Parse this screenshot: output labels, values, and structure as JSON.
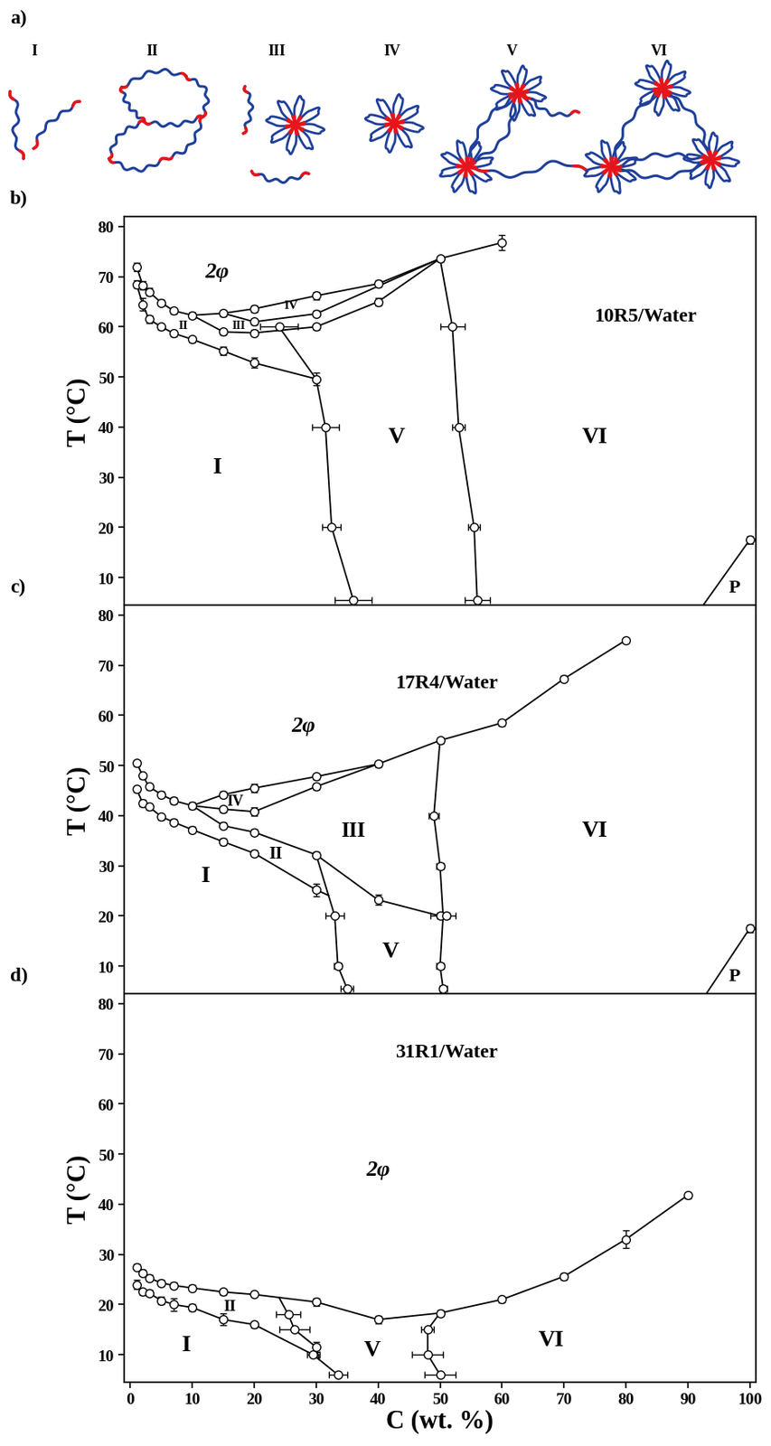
{
  "schematic": {
    "label": "a)",
    "structures": [
      "I",
      "II",
      "III",
      "IV",
      "V",
      "VI"
    ]
  },
  "chart_data": [
    {
      "type": "line",
      "panel": "b)",
      "title": "10R5/Water",
      "y_label": "T (°C)",
      "xlim": [
        -1,
        101
      ],
      "xticks": [
        0,
        10,
        20,
        30,
        40,
        50,
        60,
        70,
        80,
        90,
        100
      ],
      "ylim": [
        4.5,
        82
      ],
      "yticks": [
        10,
        20,
        30,
        40,
        50,
        60,
        70,
        80
      ],
      "tick_labels": "y",
      "series": [
        {
          "type": "line",
          "color": "#000000",
          "marker": "none",
          "x": [
            1,
            2,
            3,
            5,
            7,
            10,
            15,
            20,
            30,
            40,
            50,
            60
          ],
          "y": [
            72,
            68.3,
            67,
            64.8,
            63.2,
            62.3,
            62.7,
            63.6,
            66.2,
            68.6,
            73.6,
            76.8
          ]
        },
        {
          "type": "line",
          "color": "#000000",
          "marker": "none",
          "x": [
            1,
            2,
            3,
            5,
            7,
            10,
            15,
            20,
            30
          ],
          "y": [
            68.5,
            64.5,
            61.5,
            60,
            58.7,
            57.5,
            55.2,
            52.8,
            49.6
          ]
        },
        {
          "type": "line",
          "color": "#000000",
          "marker": "none",
          "x": [
            10,
            15,
            20,
            30,
            40,
            50
          ],
          "y": [
            62.3,
            59,
            58.8,
            60,
            65,
            73.6
          ]
        },
        {
          "type": "line",
          "color": "#000000",
          "marker": "none",
          "x": [
            15,
            20,
            30,
            50
          ],
          "y": [
            62.7,
            61,
            62.6,
            73.6
          ]
        },
        {
          "type": "line",
          "color": "#000000",
          "marker": "none",
          "x": [
            24,
            30,
            31.5,
            32.5,
            36
          ],
          "y": [
            60,
            49.6,
            40,
            20,
            5.5
          ]
        },
        {
          "type": "line",
          "color": "#000000",
          "marker": "none",
          "x": [
            50,
            52,
            53,
            55.5,
            56
          ],
          "y": [
            73.6,
            60,
            40,
            20,
            5.5
          ]
        },
        {
          "type": "line",
          "color": "#000000",
          "marker": "none",
          "x": [
            92.5,
            100
          ],
          "y": [
            4.5,
            17.5
          ]
        },
        {
          "type": "scatter",
          "color": "#000000",
          "marker": "o",
          "x": [
            1,
            1,
            2,
            2,
            3,
            3,
            5,
            5,
            7,
            7,
            10,
            10,
            15,
            15,
            15,
            20,
            20,
            20,
            20,
            24,
            30,
            30,
            30,
            30,
            31.5,
            32.5,
            36,
            40,
            40,
            50,
            52,
            53,
            55.5,
            56,
            60,
            100
          ],
          "y": [
            72,
            68.5,
            68.3,
            64.5,
            67,
            61.5,
            64.8,
            60,
            63.2,
            58.7,
            62.3,
            57.5,
            62.7,
            59,
            55.2,
            63.6,
            61,
            58.8,
            52.8,
            60,
            66.2,
            62.6,
            60,
            49.6,
            40,
            20,
            5.5,
            68.6,
            65,
            73.6,
            60,
            40,
            20,
            5.5,
            76.8,
            17.5
          ],
          "xerr": [
            0,
            0,
            0,
            0,
            0,
            0,
            0,
            0,
            0,
            0,
            0,
            0,
            0,
            0,
            0,
            0,
            0,
            0,
            0,
            3,
            0,
            0,
            0,
            0,
            2.2,
            1.5,
            3,
            0,
            0,
            0,
            2,
            1,
            1,
            2,
            0,
            0
          ],
          "yerr": [
            0.8,
            0.8,
            0.8,
            1.2,
            0.8,
            0.8,
            0.6,
            0.6,
            0.6,
            0.6,
            0.6,
            0.6,
            0.6,
            0.6,
            0.8,
            0.6,
            0.6,
            0.6,
            1,
            0,
            0.8,
            0.6,
            0.6,
            1.2,
            0,
            0,
            0,
            0.6,
            0.8,
            0.6,
            0,
            0,
            0,
            0,
            1.5,
            0.8
          ]
        }
      ],
      "annotations": [
        {
          "text": "2φ",
          "x": 14,
          "y": 71
        },
        {
          "text": "I",
          "x": 14,
          "y": 32
        },
        {
          "text": "II",
          "x": 8.5,
          "y": 60.4
        },
        {
          "text": "III",
          "x": 17.5,
          "y": 60.4
        },
        {
          "text": "IV",
          "x": 26,
          "y": 64.3
        },
        {
          "text": "V",
          "x": 43,
          "y": 38
        },
        {
          "text": "VI",
          "x": 75,
          "y": 38
        },
        {
          "text": "P",
          "x": 97.5,
          "y": 8
        }
      ]
    },
    {
      "type": "line",
      "panel": "c)",
      "title": "17R4/Water",
      "y_label": "T (°C)",
      "xlim": [
        -1,
        101
      ],
      "xticks": [
        0,
        10,
        20,
        30,
        40,
        50,
        60,
        70,
        80,
        90,
        100
      ],
      "ylim": [
        4.5,
        82
      ],
      "yticks": [
        10,
        20,
        30,
        40,
        50,
        60,
        70,
        80
      ],
      "tick_labels": "y",
      "series": [
        {
          "type": "line",
          "color": "#000000",
          "marker": "none",
          "x": [
            1,
            2,
            3,
            5,
            7,
            10,
            15,
            20,
            30,
            40,
            50,
            60,
            70,
            80
          ],
          "y": [
            50.5,
            48,
            45.8,
            44.2,
            43,
            42,
            44.2,
            45.5,
            47.8,
            50.3,
            55,
            58.5,
            67.3,
            75
          ]
        },
        {
          "type": "line",
          "color": "#000000",
          "marker": "none",
          "x": [
            1,
            2,
            3,
            5,
            7,
            10,
            15,
            20,
            30,
            32
          ],
          "y": [
            45.3,
            42.5,
            41.8,
            39.8,
            38.7,
            37.2,
            34.8,
            32.5,
            25.2,
            24.1
          ]
        },
        {
          "type": "line",
          "color": "#000000",
          "marker": "none",
          "x": [
            10,
            15,
            20,
            30,
            40
          ],
          "y": [
            42,
            41.3,
            40.8,
            45.8,
            50.3
          ]
        },
        {
          "type": "line",
          "color": "#000000",
          "marker": "none",
          "x": [
            10,
            15,
            20,
            30,
            40,
            50,
            51
          ],
          "y": [
            42,
            38,
            36.7,
            32.2,
            23.2,
            20,
            20
          ]
        },
        {
          "type": "line",
          "color": "#000000",
          "marker": "none",
          "x": [
            30,
            33,
            33.5,
            35
          ],
          "y": [
            32.2,
            20,
            10,
            5.5
          ]
        },
        {
          "type": "line",
          "color": "#000000",
          "marker": "none",
          "x": [
            50,
            49,
            50,
            50.5,
            50,
            50.5
          ],
          "y": [
            55,
            40,
            30,
            20,
            10,
            5.5
          ]
        },
        {
          "type": "line",
          "color": "#000000",
          "marker": "none",
          "x": [
            93,
            100
          ],
          "y": [
            4.5,
            17.5
          ]
        },
        {
          "type": "scatter",
          "color": "#000000",
          "marker": "o",
          "x": [
            1,
            2,
            3,
            5,
            7,
            10,
            15,
            20,
            30,
            40,
            50,
            60,
            70,
            80,
            1,
            2,
            3,
            5,
            7,
            10,
            15,
            20,
            30,
            15,
            20,
            30,
            15,
            20,
            30,
            40,
            50,
            51,
            33,
            33.5,
            35,
            49,
            50,
            50,
            50.5,
            100
          ],
          "y": [
            50.5,
            48,
            45.8,
            44.2,
            43,
            42,
            44.2,
            45.5,
            47.8,
            50.3,
            55,
            58.5,
            67.3,
            75,
            45.3,
            42.5,
            41.8,
            39.8,
            38.7,
            37.2,
            34.8,
            32.5,
            25.2,
            41.3,
            40.8,
            45.8,
            38,
            36.7,
            32.2,
            23.2,
            20,
            20,
            20,
            10,
            5.5,
            40,
            30,
            10,
            5.5,
            17.5
          ],
          "xerr": [
            0,
            0,
            0,
            0,
            0,
            0,
            0,
            0,
            0,
            0,
            0,
            0,
            0,
            0,
            0,
            0,
            0,
            0,
            0,
            0,
            0,
            0,
            0,
            0,
            0,
            0,
            0,
            0,
            0,
            0,
            1.5,
            1.5,
            1.5,
            0.6,
            1,
            0.8,
            0.6,
            0.6,
            0.6,
            0
          ],
          "yerr": [
            0.6,
            0.6,
            0.6,
            0.6,
            0.6,
            0.6,
            0.6,
            0.8,
            0.6,
            0.6,
            0.6,
            0.6,
            0.6,
            0,
            0.6,
            0.6,
            0.6,
            0.6,
            0.6,
            0.6,
            0.6,
            0.6,
            1.2,
            0.6,
            0.8,
            0.6,
            0.6,
            0.6,
            0.6,
            1,
            0,
            0,
            0,
            0,
            0,
            0,
            0,
            0,
            0,
            0.8
          ]
        }
      ],
      "annotations": [
        {
          "text": "2φ",
          "x": 28,
          "y": 58
        },
        {
          "text": "I",
          "x": 12,
          "y": 28
        },
        {
          "text": "II",
          "x": 23.5,
          "y": 32.5
        },
        {
          "text": "III",
          "x": 36,
          "y": 37
        },
        {
          "text": "IV",
          "x": 17,
          "y": 42.9
        },
        {
          "text": "V",
          "x": 42,
          "y": 13
        },
        {
          "text": "VI",
          "x": 75,
          "y": 37
        },
        {
          "text": "P",
          "x": 97.5,
          "y": 8
        }
      ]
    },
    {
      "type": "line",
      "panel": "d)",
      "title": "31R1/Water",
      "y_label": "T (°C)",
      "x_label": "C (wt. %)",
      "xlim": [
        -1,
        101
      ],
      "xticks": [
        0,
        10,
        20,
        30,
        40,
        50,
        60,
        70,
        80,
        90,
        100
      ],
      "ylim": [
        4.5,
        82
      ],
      "yticks": [
        10,
        20,
        30,
        40,
        50,
        60,
        70,
        80
      ],
      "series": [
        {
          "type": "line",
          "color": "#000000",
          "marker": "none",
          "x": [
            1,
            2,
            3,
            5,
            7,
            10,
            15,
            20,
            30,
            40,
            50,
            60,
            70,
            80,
            90
          ],
          "y": [
            27.5,
            26.3,
            25.3,
            24.3,
            23.8,
            23.3,
            22.5,
            22,
            20.5,
            17,
            18.3,
            21,
            25.6,
            33,
            41.8
          ]
        },
        {
          "type": "line",
          "color": "#000000",
          "marker": "none",
          "x": [
            1,
            2,
            3,
            5,
            7,
            10,
            15,
            20,
            29.5,
            33.5
          ],
          "y": [
            24,
            22.5,
            22.3,
            20.8,
            20,
            19.4,
            17,
            16,
            10,
            6
          ]
        },
        {
          "type": "line",
          "color": "#000000",
          "marker": "none",
          "x": [
            24,
            25.5,
            26.5,
            30,
            30.5
          ],
          "y": [
            21.4,
            18,
            15,
            11.5,
            9
          ]
        },
        {
          "type": "line",
          "color": "#000000",
          "marker": "none",
          "x": [
            50,
            48,
            48,
            50
          ],
          "y": [
            18.3,
            15,
            10,
            6
          ]
        },
        {
          "type": "scatter",
          "color": "#000000",
          "marker": "o",
          "x": [
            1,
            2,
            3,
            5,
            7,
            10,
            15,
            20,
            30,
            40,
            50,
            60,
            70,
            80,
            90,
            1,
            2,
            3,
            5,
            7,
            10,
            15,
            20,
            29.5,
            33.5,
            25.5,
            26.5,
            30,
            48,
            48,
            50
          ],
          "y": [
            27.5,
            26.3,
            25.3,
            24.3,
            23.8,
            23.3,
            22.5,
            22,
            20.5,
            17,
            18.3,
            21,
            25.6,
            33,
            41.8,
            24,
            22.5,
            22.3,
            20.8,
            20,
            19.4,
            17,
            16,
            10,
            6,
            18,
            15,
            11.5,
            15,
            10,
            6
          ],
          "xerr": [
            0,
            0,
            0,
            0,
            0,
            0,
            0,
            0,
            0,
            0,
            0,
            0,
            0,
            0,
            0,
            0,
            0,
            0,
            0,
            0,
            0,
            0,
            0,
            1,
            1.5,
            2,
            2.5,
            0,
            1,
            2.5,
            2.5
          ],
          "yerr": [
            0.6,
            0.6,
            0.6,
            0.6,
            0.6,
            0.6,
            0.6,
            0,
            0.8,
            0.8,
            0.6,
            0.6,
            0.6,
            1.8,
            0.6,
            1,
            0.6,
            0.6,
            0.8,
            1.2,
            0.6,
            1.2,
            0.6,
            0,
            0,
            0,
            0,
            1,
            0,
            0,
            0
          ]
        }
      ],
      "annotations": [
        {
          "text": "2φ",
          "x": 40,
          "y": 47
        },
        {
          "text": "I",
          "x": 9,
          "y": 12
        },
        {
          "text": "II",
          "x": 16,
          "y": 19.6
        },
        {
          "text": "V",
          "x": 39,
          "y": 11
        },
        {
          "text": "VI",
          "x": 68,
          "y": 13
        }
      ]
    }
  ]
}
